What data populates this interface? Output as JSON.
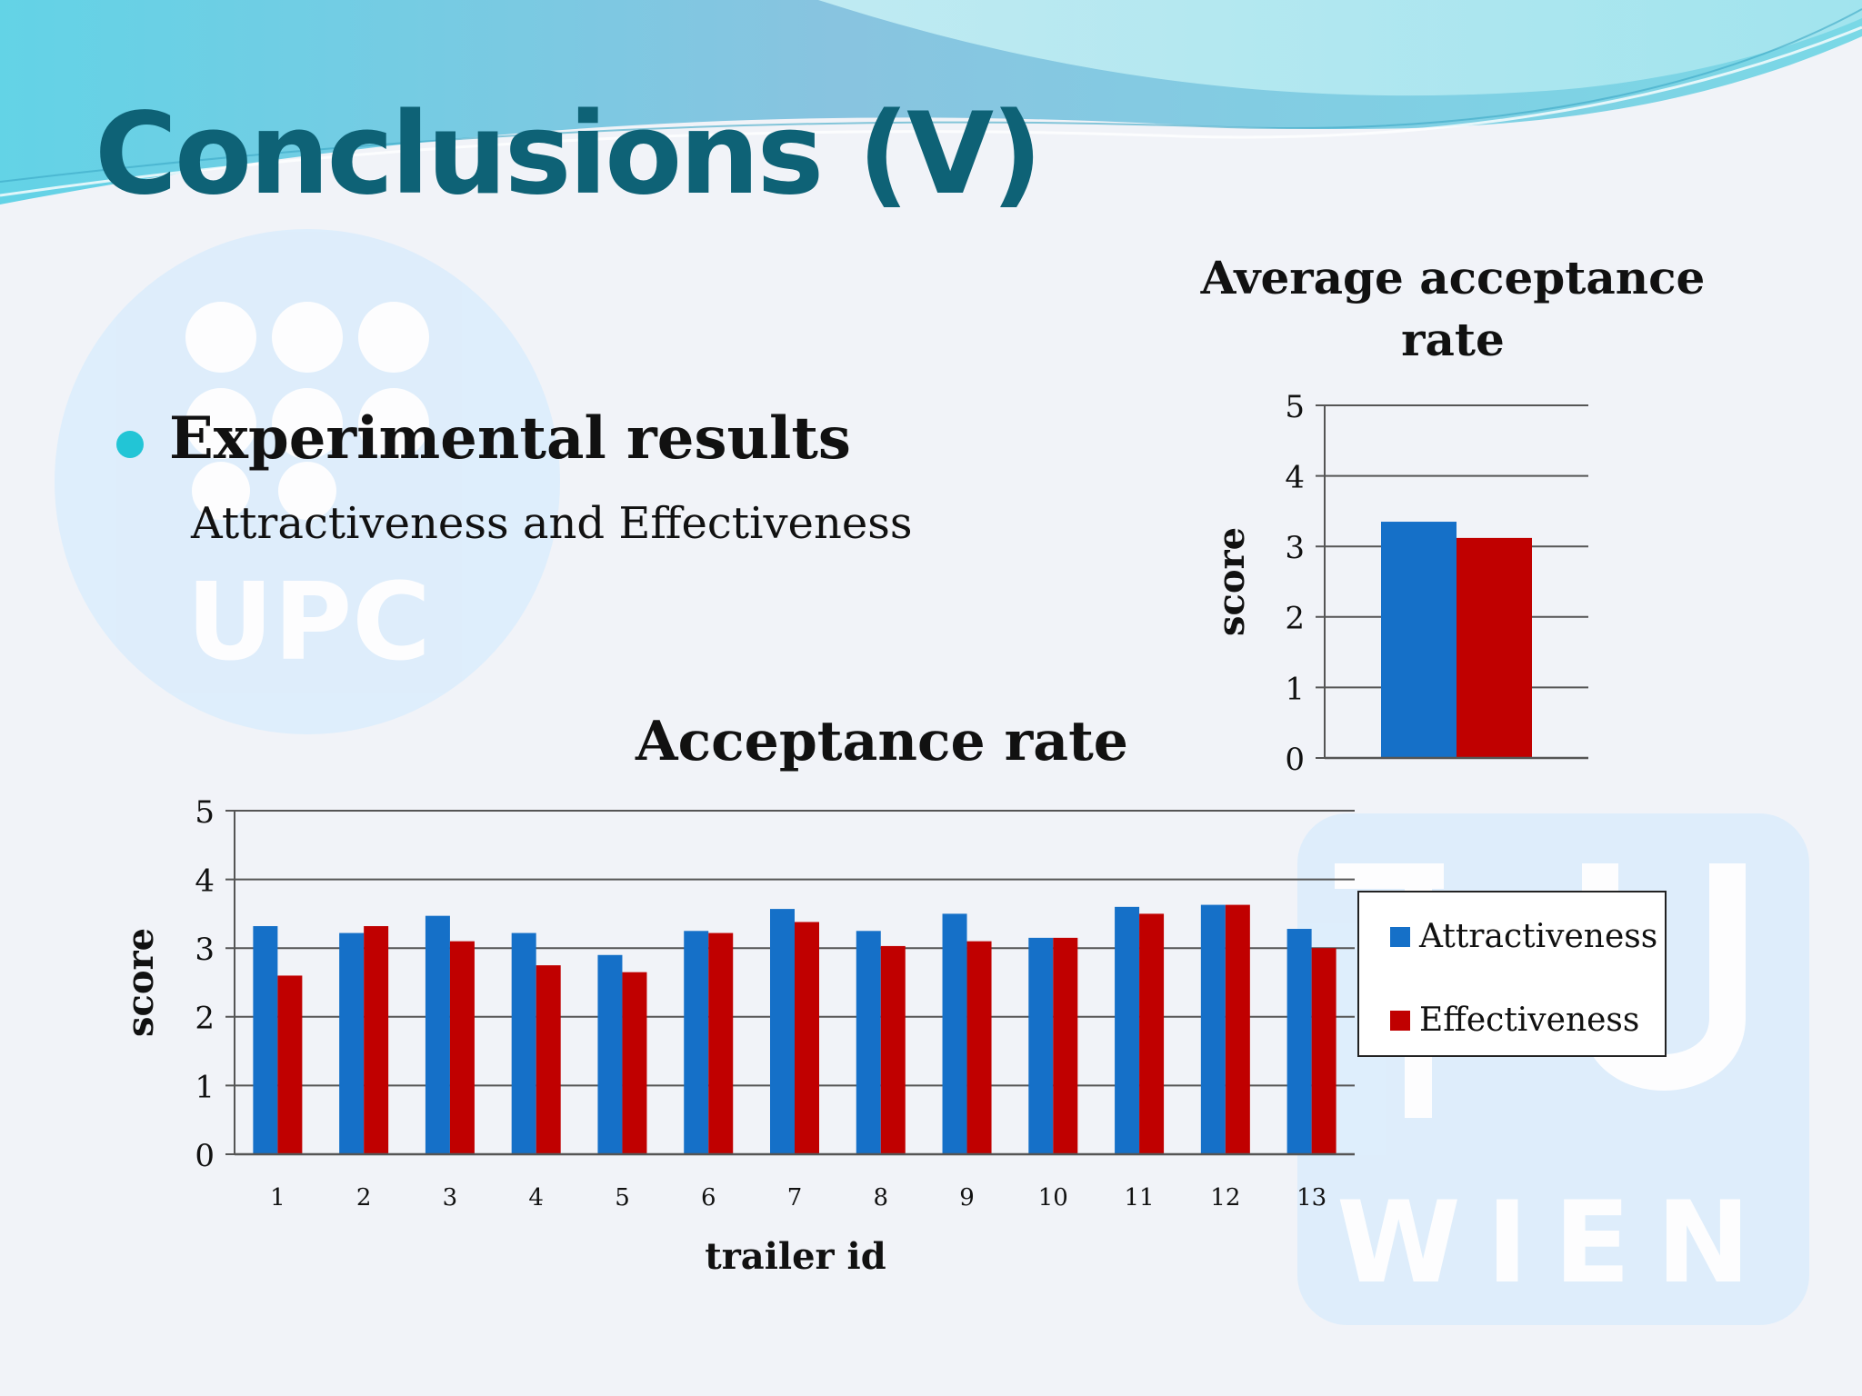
{
  "slide": {
    "title": "Conclusions (V)",
    "bullet": {
      "heading": "Experimental results",
      "subtext": "Attractiveness and Effectiveness"
    },
    "logos": {
      "upc": "UPC",
      "tu_wien": "WIEN"
    },
    "colors": {
      "title": "#0e6276",
      "bullet": "#22c5d6",
      "attractiveness": "#1570c8",
      "effectiveness": "#c00000"
    }
  },
  "chart_data": [
    {
      "type": "bar",
      "title": "Average acceptance rate",
      "title_lines": [
        "Average acceptance",
        "rate"
      ],
      "xlabel": "",
      "ylabel": "score",
      "ylim": [
        0,
        5
      ],
      "yticks": [
        "0",
        "1",
        "2",
        "3",
        "4",
        "5"
      ],
      "grid": true,
      "categories": [
        ""
      ],
      "series": [
        {
          "name": "Attractiveness",
          "values": [
            3.35
          ]
        },
        {
          "name": "Effectiveness",
          "values": [
            3.12
          ]
        }
      ]
    },
    {
      "type": "bar",
      "title": "Acceptance rate",
      "xlabel": "trailer id",
      "ylabel": "score",
      "ylim": [
        0,
        5
      ],
      "yticks": [
        "0",
        "1",
        "2",
        "3",
        "4",
        "5"
      ],
      "grid": true,
      "legend": "right",
      "categories": [
        "1",
        "2",
        "3",
        "4",
        "5",
        "6",
        "7",
        "8",
        "9",
        "10",
        "11",
        "12",
        "13"
      ],
      "series": [
        {
          "name": "Attractiveness",
          "values": [
            3.32,
            3.22,
            3.47,
            3.22,
            2.9,
            3.25,
            3.57,
            3.25,
            3.5,
            3.15,
            3.6,
            3.63,
            3.28
          ]
        },
        {
          "name": "Effectiveness",
          "values": [
            2.6,
            3.32,
            3.1,
            2.75,
            2.65,
            3.22,
            3.38,
            3.03,
            3.1,
            3.15,
            3.5,
            3.63,
            3.0
          ]
        }
      ]
    }
  ]
}
